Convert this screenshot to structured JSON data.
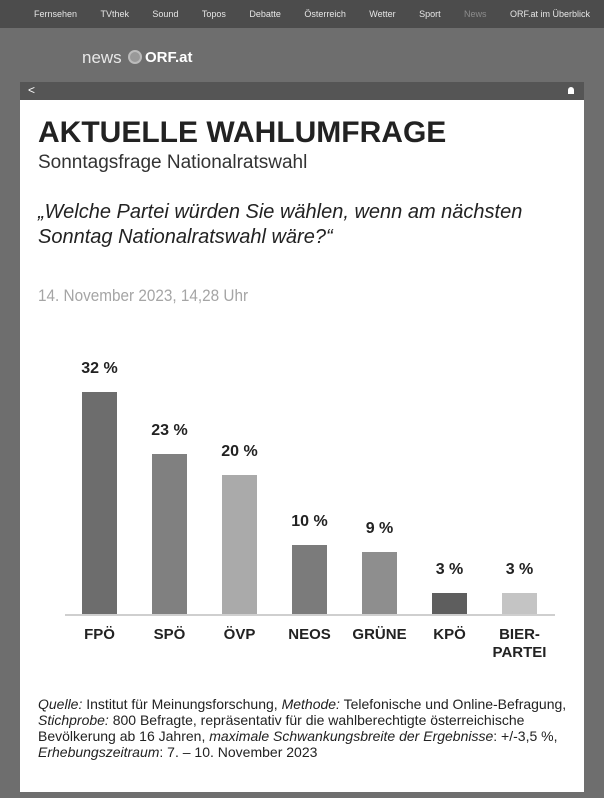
{
  "nav": [
    "Fernsehen",
    "TVthek",
    "Sound",
    "Topos",
    "Debatte",
    "Österreich",
    "Wetter",
    "Sport",
    "News",
    "ORF.at im Überblick"
  ],
  "logo": {
    "left": "news",
    "right": "ORF.at"
  },
  "back": "<",
  "chart_data": {
    "type": "bar",
    "title": "AKTUELLE WAHLUMFRAGE",
    "subtitle": "Sonntagsfrage Nationalratswahl",
    "question": "„Welche Partei würden Sie wählen, wenn am nächsten Sonntag Nationalratswahl wäre?“",
    "date": "14. November 2023, 14,28 Uhr",
    "categories": [
      "FPÖ",
      "SPÖ",
      "ÖVP",
      "NEOS",
      "GRÜNE",
      "KPÖ",
      "BIER-PARTEI"
    ],
    "values": [
      32,
      23,
      20,
      10,
      9,
      3,
      3
    ],
    "value_labels": [
      "32 %",
      "23 %",
      "20 %",
      "10 %",
      "9 %",
      "3 %",
      "3 %"
    ],
    "colors": [
      "#6d6d6d",
      "#808080",
      "#aaaaaa",
      "#7b7b7b",
      "#8e8e8e",
      "#5e5e5e",
      "#c4c4c4"
    ],
    "ylim": [
      0,
      35
    ],
    "footnote": [
      {
        "text": "Quelle:",
        "italic": true
      },
      {
        "text": " Institut für Meinungsforschung, ",
        "italic": false
      },
      {
        "text": "Methode:",
        "italic": true
      },
      {
        "text": " Telefonische und Online-Befragung, ",
        "italic": false
      },
      {
        "text": "Stichprobe:",
        "italic": true
      },
      {
        "text": " 800 Befragte, repräsentativ für die wahlberechtigte österreichische Bevölkerung ab 16 Jahren, ",
        "italic": false
      },
      {
        "text": "maximale Schwankungsbreite der Ergebnisse",
        "italic": true
      },
      {
        "text": ": +/-3,5 %, ",
        "italic": false
      },
      {
        "text": "Erhebungszeitraum",
        "italic": true
      },
      {
        "text": ": 7. – 10. November 2023",
        "italic": false
      }
    ]
  }
}
